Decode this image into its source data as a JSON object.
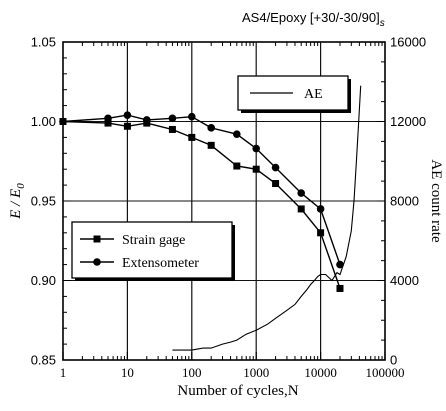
{
  "chart_data": {
    "type": "line",
    "title": "AS4/Epoxy [+30/-30/90]",
    "title_subscript": "s",
    "xlabel": "Number of cycles,N",
    "ylabel_left": "E / E",
    "ylabel_left_subscript": "0",
    "ylabel_right": "AE count rate",
    "x_scale": "log",
    "xlim": [
      1,
      100000
    ],
    "ylim_left": [
      0.85,
      1.05
    ],
    "ylim_right": [
      0,
      16000
    ],
    "x_tick_values": [
      1,
      10,
      100,
      1000,
      10000,
      100000
    ],
    "x_tick_labels": [
      "1",
      "10",
      "100",
      "1000",
      "10000",
      "100000"
    ],
    "y_left_tick_values": [
      0.85,
      0.9,
      0.95,
      1.0,
      1.05
    ],
    "y_left_tick_labels": [
      "0.85",
      "0.90",
      "0.95",
      "1.00",
      "1.05"
    ],
    "y_right_tick_values": [
      0,
      4000,
      8000,
      12000,
      16000
    ],
    "y_right_tick_labels": [
      "0",
      "4000",
      "8000",
      "12000",
      "16000"
    ],
    "grid": "vertical at decades; horizontal at 4000 and 8000 (AE axis) and 1.00",
    "series": [
      {
        "name": "Strain gage",
        "axis": "left",
        "marker": "square",
        "x": [
          1,
          5,
          10,
          20,
          50,
          100,
          200,
          500,
          1000,
          2000,
          5000,
          10000,
          20000
        ],
        "y": [
          1.0,
          0.999,
          0.997,
          0.999,
          0.995,
          0.99,
          0.985,
          0.972,
          0.97,
          0.961,
          0.945,
          0.93,
          0.895
        ]
      },
      {
        "name": "Extensometer",
        "axis": "left",
        "marker": "circle",
        "x": [
          1,
          5,
          10,
          20,
          50,
          100,
          200,
          500,
          1000,
          2000,
          5000,
          10000,
          20000
        ],
        "y": [
          1.0,
          1.002,
          1.004,
          1.001,
          1.002,
          1.003,
          0.996,
          0.992,
          0.983,
          0.971,
          0.955,
          0.945,
          0.91
        ]
      },
      {
        "name": "AE",
        "axis": "right",
        "marker": "none",
        "x": [
          50,
          100,
          150,
          200,
          300,
          400,
          500,
          700,
          1000,
          1500,
          2000,
          3000,
          4000,
          5000,
          6000,
          7000,
          8000,
          9000,
          10000,
          12000,
          15000,
          18000,
          20000,
          25000,
          30000,
          33000,
          36000,
          39000,
          42000
        ],
        "y": [
          500,
          500,
          600,
          600,
          800,
          900,
          1000,
          1300,
          1500,
          1800,
          2100,
          2500,
          2800,
          3200,
          3500,
          3800,
          4000,
          4200,
          4300,
          4300,
          4000,
          4400,
          4300,
          5200,
          6500,
          8000,
          10000,
          12000,
          13800
        ]
      }
    ],
    "legend": {
      "markers_box": {
        "placement": "lower-left",
        "entries": [
          "Strain gage",
          "Extensometer"
        ]
      },
      "ae_box": {
        "placement": "upper-right",
        "entries": [
          "AE"
        ]
      }
    }
  }
}
